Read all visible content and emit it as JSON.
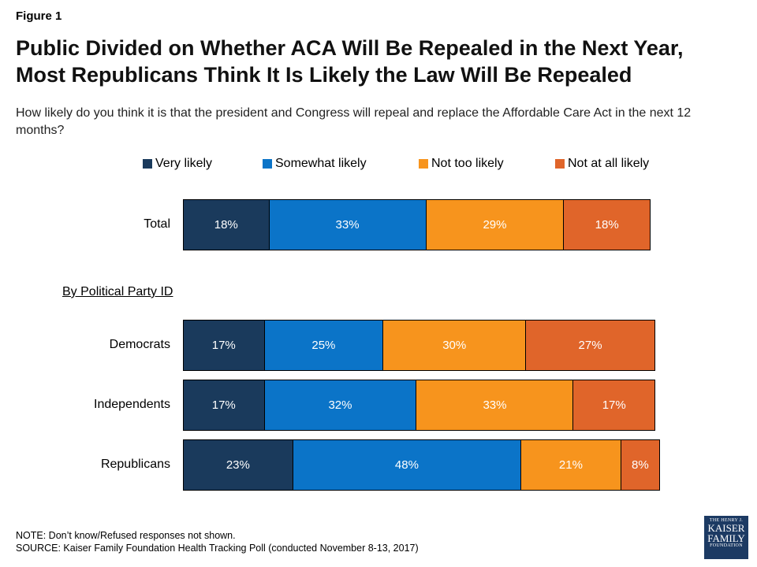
{
  "figure_label": "Figure 1",
  "title_line1": "Public Divided on Whether ACA Will Be Repealed in the Next Year,",
  "title_line2": "Most Republicans Think It Is Likely the Law Will Be Repealed",
  "question": "How likely do you think it is that the president and Congress will repeal and replace the Affordable Care Act in the next 12 months?",
  "section_label": "By Political Party ID",
  "note": "NOTE: Don’t know/Refused responses not shown.",
  "source": "SOURCE: Kaiser Family Foundation Health Tracking Poll (conducted November 8-13, 2017)",
  "logo": {
    "line1": "THE HENRY J.",
    "line2": "KAISER",
    "line3": "FAMILY",
    "line4": "FOUNDATION"
  },
  "colors": {
    "Very likely": "#1a3a5c",
    "Somewhat likely": "#0b74c8",
    "Not too likely": "#f7941d",
    "Not at all likely": "#e0652a"
  },
  "chart_data": {
    "type": "bar",
    "orientation": "horizontal",
    "stacked": true,
    "categories": [
      "Total",
      "Democrats",
      "Independents",
      "Republicans"
    ],
    "series": [
      {
        "name": "Very likely",
        "values": [
          18,
          17,
          17,
          23
        ]
      },
      {
        "name": "Somewhat likely",
        "values": [
          33,
          25,
          32,
          48
        ]
      },
      {
        "name": "Not too likely",
        "values": [
          29,
          30,
          33,
          21
        ]
      },
      {
        "name": "Not at all likely",
        "values": [
          18,
          27,
          17,
          8
        ]
      }
    ],
    "value_suffix": "%",
    "legend_position": "top",
    "xlim": [
      0,
      100
    ]
  }
}
